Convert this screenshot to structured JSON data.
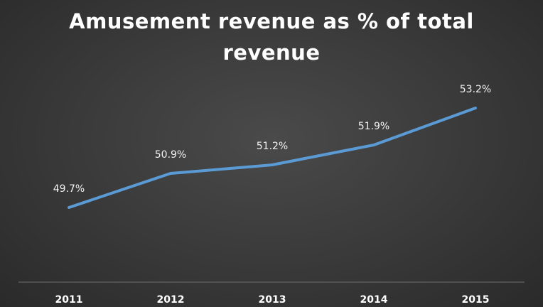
{
  "chart_data": {
    "type": "line",
    "title": "Amusement revenue as % of total revenue",
    "categories": [
      "2011",
      "2012",
      "2013",
      "2014",
      "2015"
    ],
    "series": [
      {
        "values": [
          49.7,
          50.9,
          51.2,
          51.9,
          53.2
        ],
        "data_labels": [
          "49.7%",
          "50.9%",
          "51.2%",
          "51.9%",
          "53.2%"
        ],
        "color": "#5b9bd5"
      }
    ],
    "xlabel": "",
    "ylabel": "",
    "y_axis_visible": false,
    "grid": false,
    "legend": "none",
    "background_color": "#3c3c3c",
    "text_color": "#ffffff",
    "axis_line_color": "#6e6e6e"
  }
}
